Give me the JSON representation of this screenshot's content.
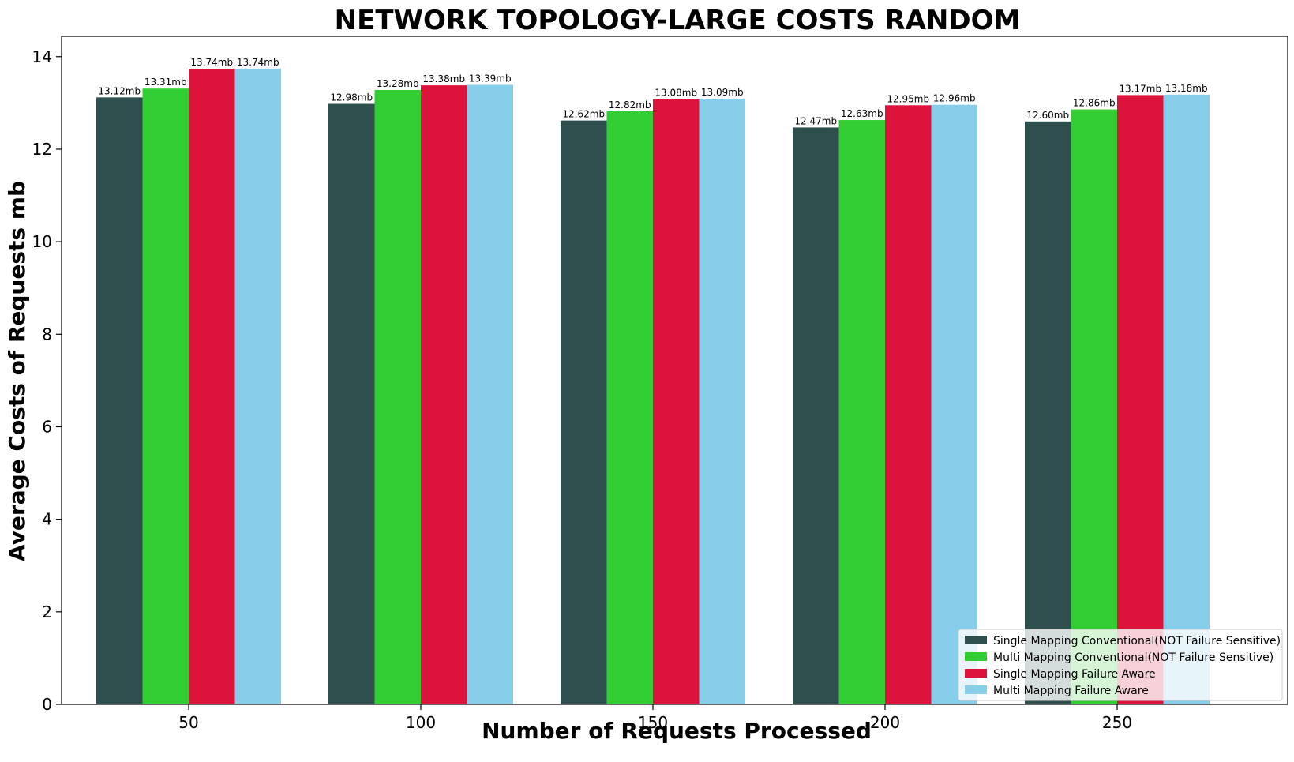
{
  "chart_data": {
    "type": "bar",
    "title": "NETWORK TOPOLOGY-LARGE COSTS RANDOM",
    "xlabel": "Number of Requests Processed",
    "ylabel": "Average Costs of Requests mb",
    "categories": [
      "50",
      "100",
      "150",
      "200",
      "250"
    ],
    "ylim": [
      0,
      14.44
    ],
    "yticks": [
      0,
      2,
      4,
      6,
      8,
      10,
      12,
      14
    ],
    "value_suffix": "mb",
    "grid": false,
    "legend_position": "bottom-right",
    "series": [
      {
        "name": "Single Mapping Conventional(NOT Failure Sensitive)",
        "color": "#2f4f4f",
        "values": [
          13.12,
          12.98,
          12.62,
          12.47,
          12.6
        ]
      },
      {
        "name": "Multi Mapping Conventional(NOT Failure Sensitive)",
        "color": "#32cd32",
        "values": [
          13.31,
          13.28,
          12.82,
          12.63,
          12.86
        ]
      },
      {
        "name": "Single Mapping Failure Aware",
        "color": "#dc143c",
        "values": [
          13.74,
          13.38,
          13.08,
          12.95,
          13.17
        ]
      },
      {
        "name": "Multi Mapping Failure Aware",
        "color": "#87ceeb",
        "values": [
          13.74,
          13.39,
          13.09,
          12.96,
          13.18
        ]
      }
    ]
  }
}
